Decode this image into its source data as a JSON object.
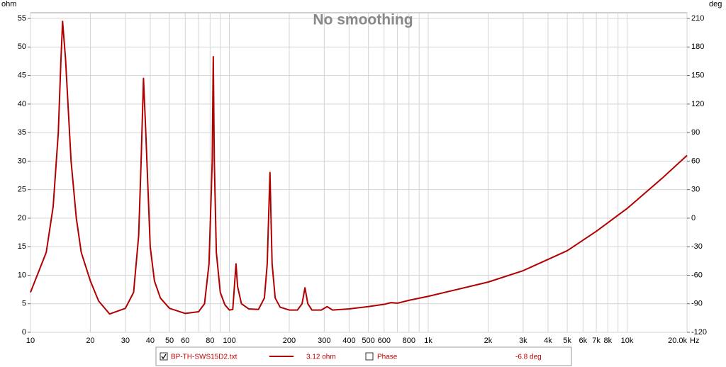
{
  "chart_data": {
    "type": "line",
    "title": "No smoothing",
    "y_unit": "ohm",
    "y2_unit": "deg",
    "x_unit": "Hz",
    "xscale": "log",
    "xlim": [
      10,
      20000
    ],
    "xticks": [
      10,
      20,
      30,
      40,
      50,
      60,
      80,
      100,
      200,
      300,
      400,
      500,
      600,
      800,
      {
        "value": 1000,
        "label": "1k"
      },
      {
        "value": 2000,
        "label": "2k"
      },
      {
        "value": 3000,
        "label": "3k"
      },
      {
        "value": 4000,
        "label": "4k"
      },
      {
        "value": 5000,
        "label": "5k"
      },
      {
        "value": 6000,
        "label": "6k"
      },
      {
        "value": 7000,
        "label": "7k"
      },
      {
        "value": 8000,
        "label": "8k"
      },
      {
        "value": 10000,
        "label": "10k"
      },
      {
        "value": 20000,
        "label": "20.0k"
      }
    ],
    "xgrid_minor": [
      70,
      90,
      700,
      900,
      9000
    ],
    "ylim": [
      0,
      56
    ],
    "yticks": [
      0,
      5,
      10,
      15,
      20,
      25,
      30,
      35,
      40,
      45,
      50,
      55
    ],
    "y2lim": [
      -120,
      216
    ],
    "y2ticks": [
      -120,
      -90,
      -60,
      -30,
      0,
      30,
      60,
      90,
      120,
      150,
      180,
      210
    ],
    "grid": true,
    "series": [
      {
        "name": "BP-TH-SWS15D2.txt",
        "color": "#b00000",
        "x": [
          10,
          12,
          13,
          13.8,
          14.2,
          14.5,
          15,
          16,
          17,
          18,
          20,
          22,
          25,
          30,
          33,
          35,
          36,
          37,
          38,
          40,
          42,
          45,
          50,
          60,
          70,
          75,
          79,
          82,
          83,
          84,
          86,
          90,
          95,
          100,
          104,
          106,
          108,
          110,
          115,
          125,
          140,
          150,
          155,
          160,
          164,
          170,
          180,
          200,
          220,
          232,
          240,
          248,
          260,
          290,
          310,
          330,
          400,
          500,
          600,
          650,
          700,
          800,
          1000,
          2000,
          3000,
          5000,
          7000,
          10000,
          15000,
          20000
        ],
        "values": [
          7,
          14,
          22,
          35,
          47,
          54.5,
          48,
          30,
          20,
          14,
          9,
          5.5,
          3.2,
          4.2,
          7,
          17,
          30,
          44.5,
          35,
          15,
          9,
          6,
          4.2,
          3.3,
          3.6,
          5,
          12,
          30,
          48.3,
          30,
          14,
          7,
          4.8,
          3.9,
          4,
          8,
          12,
          8,
          5,
          4.1,
          4,
          6,
          12,
          28,
          12,
          6,
          4.4,
          3.9,
          3.9,
          5,
          7.8,
          5,
          3.9,
          3.9,
          4.5,
          3.9,
          4.1,
          4.5,
          4.9,
          5.2,
          5.1,
          5.6,
          6.3,
          8.8,
          10.8,
          14.3,
          17.7,
          21.7,
          27,
          31
        ]
      }
    ],
    "legend": {
      "cursor_value": "3.12 ohm",
      "phase_label": "Phase",
      "phase_value": "-6.8 deg"
    }
  }
}
